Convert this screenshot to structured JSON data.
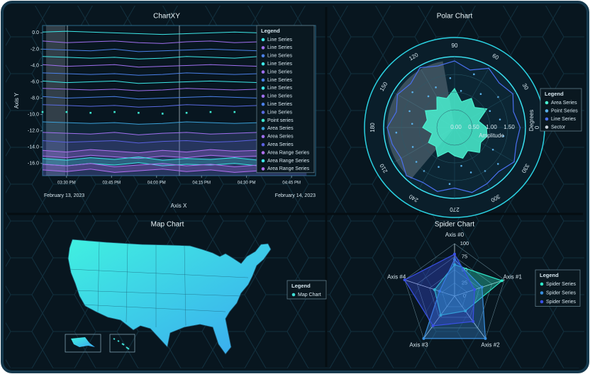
{
  "chart_data": [
    {
      "type": "line",
      "title": "ChartXY",
      "x_label": "Axis X",
      "y_label": "Axis Y",
      "legend_title": "Legend",
      "date_labels": [
        "February 13, 2023",
        "February 14, 2023"
      ],
      "xlim": [
        "2023-02-13T15:22",
        "2023-02-13T16:53"
      ],
      "xticks": [
        {
          "value": "2023-02-13T15:30",
          "label": "03:30 PM"
        },
        {
          "value": "2023-02-13T15:45",
          "label": "03:45 PM"
        },
        {
          "value": "2023-02-13T16:00",
          "label": "04:00 PM"
        },
        {
          "value": "2023-02-13T16:15",
          "label": "04:15 PM"
        },
        {
          "value": "2023-02-13T16:30",
          "label": "04:30 PM"
        },
        {
          "value": "2023-02-13T16:45",
          "label": "04:45 PM"
        }
      ],
      "ylim": [
        -17.5,
        0.9
      ],
      "yticks": [
        {
          "value": 0,
          "label": "0.0"
        },
        {
          "value": -2,
          "label": "-2.0"
        },
        {
          "value": -4,
          "label": "-4.0"
        },
        {
          "value": -6,
          "label": "-6.0"
        },
        {
          "value": -8,
          "label": "-8.0"
        },
        {
          "value": -10,
          "label": "-10.0"
        },
        {
          "value": -12,
          "label": "-12.0"
        },
        {
          "value": -14,
          "label": "-14.0"
        },
        {
          "value": -16,
          "label": "-16.0"
        }
      ],
      "x": [
        "2023-02-13T15:22",
        "2023-02-13T15:30",
        "2023-02-13T15:38",
        "2023-02-13T15:46",
        "2023-02-13T15:54",
        "2023-02-13T16:02",
        "2023-02-13T16:10",
        "2023-02-13T16:18",
        "2023-02-13T16:26",
        "2023-02-13T16:34",
        "2023-02-13T16:42",
        "2023-02-13T16:50"
      ],
      "series": [
        {
          "name": "Line Series",
          "kind": "line",
          "color": "#3de8e8",
          "values": [
            0.1,
            0.2,
            0.1,
            0.0,
            -0.1,
            -0.2,
            -0.1,
            0.0,
            0.1,
            0.0,
            -0.1,
            0.1
          ]
        },
        {
          "name": "Line Series",
          "kind": "line",
          "color": "#a070f0",
          "values": [
            -1.0,
            -1.2,
            -1.1,
            -1.0,
            -1.2,
            -1.3,
            -1.1,
            -1.0,
            -1.2,
            -1.1,
            -1.0,
            -1.1
          ]
        },
        {
          "name": "Line Series",
          "kind": "line",
          "color": "#4a80e8",
          "values": [
            -2.0,
            -2.1,
            -2.2,
            -2.0,
            -2.3,
            -2.2,
            -2.1,
            -2.0,
            -2.1,
            -2.2,
            -2.0,
            -2.1
          ]
        },
        {
          "name": "Line Series",
          "kind": "line",
          "color": "#3de8e8",
          "values": [
            -2.9,
            -3.0,
            -3.1,
            -3.0,
            -3.2,
            -3.1,
            -2.9,
            -3.0,
            -3.1,
            -2.9,
            -3.0,
            -3.1
          ]
        },
        {
          "name": "Line Series",
          "kind": "line",
          "color": "#a070f0",
          "values": [
            -3.9,
            -4.1,
            -4.0,
            -3.9,
            -4.2,
            -4.1,
            -4.0,
            -3.9,
            -4.0,
            -4.1,
            -3.9,
            -4.0
          ]
        },
        {
          "name": "Line Series",
          "kind": "line",
          "color": "#4a80e8",
          "values": [
            -4.9,
            -5.0,
            -5.1,
            -5.0,
            -5.2,
            -5.1,
            -4.9,
            -5.0,
            -5.1,
            -5.0,
            -4.9,
            -5.0
          ]
        },
        {
          "name": "Line Series",
          "kind": "line",
          "color": "#3de8e8",
          "values": [
            -5.9,
            -6.1,
            -6.0,
            -5.9,
            -6.2,
            -6.1,
            -6.0,
            -5.9,
            -6.0,
            -6.1,
            -5.9,
            -6.0
          ]
        },
        {
          "name": "Line Series",
          "kind": "line",
          "color": "#a070f0",
          "values": [
            -6.8,
            -6.9,
            -7.0,
            -6.9,
            -7.1,
            -7.0,
            -6.8,
            -6.9,
            -7.0,
            -6.9,
            -6.8,
            -6.9
          ]
        },
        {
          "name": "Line Series",
          "kind": "line",
          "color": "#4a80e8",
          "values": [
            -7.8,
            -8.0,
            -7.9,
            -7.8,
            -8.1,
            -8.0,
            -7.9,
            -7.8,
            -7.9,
            -8.0,
            -7.8,
            -7.9
          ]
        },
        {
          "name": "Line Series",
          "kind": "line",
          "color": "#5a6ae0",
          "values": [
            -8.8,
            -8.9,
            -9.0,
            -8.9,
            -9.1,
            -9.0,
            -8.8,
            -8.9,
            -9.0,
            -8.9,
            -8.8,
            -8.9
          ]
        },
        {
          "name": "Point series",
          "kind": "point",
          "color": "#3de8d0",
          "values": [
            -9.7,
            -9.7,
            -9.8,
            -9.7,
            -9.8,
            -9.9,
            -9.8,
            -9.7,
            -9.7,
            -9.8,
            -9.7,
            -9.8
          ]
        },
        {
          "name": "Area Series",
          "kind": "area",
          "color": "#3aa0d8",
          "values": [
            -10.9,
            -11.0,
            -11.1,
            -11.0,
            -11.2,
            -11.1,
            -10.9,
            -11.0,
            -11.1,
            -11.0,
            -10.9,
            -11.0
          ]
        },
        {
          "name": "Area Series",
          "kind": "area",
          "color": "#a070f0",
          "values": [
            -12.2,
            -12.3,
            -12.4,
            -12.2,
            -12.5,
            -12.3,
            -12.2,
            -12.4,
            -12.3,
            -12.2,
            -12.4,
            -12.3
          ]
        },
        {
          "name": "Area Series",
          "kind": "area",
          "color": "#5a60e0",
          "values": [
            -13.2,
            -13.4,
            -13.3,
            -13.2,
            -13.5,
            -13.3,
            -13.2,
            -13.4,
            -13.3,
            -13.1,
            -13.3,
            -13.2
          ]
        },
        {
          "name": "Area Range Series",
          "kind": "range",
          "color": "#b070f0",
          "high": [
            -14.4,
            -14.6,
            -14.3,
            -14.5,
            -14.7,
            -14.4,
            -14.6,
            -14.3,
            -14.5,
            -14.4,
            -14.6,
            -14.5
          ],
          "low": [
            -15.1,
            -15.3,
            -15.0,
            -15.2,
            -15.4,
            -15.1,
            -15.3,
            -15.0,
            -15.2,
            -15.1,
            -15.3,
            -15.2
          ]
        },
        {
          "name": "Area Range Series",
          "kind": "range",
          "color": "#3de8e8",
          "high": [
            -15.4,
            -15.6,
            -15.3,
            -15.5,
            -15.2,
            -15.6,
            -15.4,
            -15.5,
            -15.3,
            -15.6,
            -15.4,
            -15.5
          ],
          "low": [
            -16.1,
            -16.3,
            -16.0,
            -16.2,
            -15.9,
            -16.3,
            -16.1,
            -16.2,
            -16.0,
            -16.3,
            -16.1,
            -16.2
          ]
        },
        {
          "name": "Area Range Series",
          "kind": "range",
          "color": "#b070f0",
          "high": [
            -16.1,
            -16.3,
            -16.0,
            -16.4,
            -16.2,
            -16.0,
            -16.3,
            -16.1,
            -16.4,
            -16.2,
            -16.0,
            -16.3
          ],
          "low": [
            -16.8,
            -17.0,
            -16.7,
            -17.1,
            -16.9,
            -16.7,
            -17.0,
            -16.8,
            -17.1,
            -16.9,
            -16.7,
            -17.0
          ]
        }
      ]
    },
    {
      "type": "polar",
      "title": "Polar Chart",
      "r_label": "Amplitude",
      "angle_label": "Degrees",
      "legend_title": "Legend",
      "ylim": [
        0,
        2
      ],
      "yticks": [
        {
          "value": 0,
          "label": "0.00"
        },
        {
          "value": 0.5,
          "label": "0.50"
        },
        {
          "value": 1,
          "label": "1.00"
        },
        {
          "value": 1.5,
          "label": "1.50"
        }
      ],
      "angle_ticks": [
        0,
        30,
        60,
        90,
        120,
        150,
        180,
        210,
        240,
        270,
        300,
        330
      ],
      "angles": [
        0,
        15,
        30,
        45,
        60,
        75,
        90,
        105,
        120,
        135,
        150,
        165,
        180,
        195,
        210,
        225,
        240,
        255,
        270,
        285,
        300,
        315,
        330,
        345
      ],
      "series": [
        {
          "name": "Area Series",
          "kind": "area",
          "color": "#4af0d0",
          "values": [
            0.9,
            0.7,
            1.05,
            0.8,
            0.95,
            0.75,
            1.1,
            0.85,
            1.0,
            0.7,
            0.95,
            0.8,
            0.9,
            0.65,
            0.85,
            0.75,
            0.95,
            0.7,
            0.8,
            0.9,
            0.75,
            1.0,
            0.85,
            0.95
          ]
        },
        {
          "name": "Point Series",
          "kind": "point",
          "color": "#5ab0e8",
          "angles": [
            10,
            35,
            52,
            70,
            95,
            115,
            140,
            160,
            185,
            205,
            222,
            248,
            265,
            290,
            305,
            330,
            350,
            25,
            80,
            130,
            175,
            235,
            280,
            320
          ],
          "values": [
            1.3,
            1.5,
            1.2,
            1.6,
            1.4,
            1.25,
            1.55,
            1.35,
            1.65,
            1.3,
            1.45,
            1.2,
            1.6,
            1.35,
            1.5,
            1.25,
            1.4,
            1.1,
            1.05,
            1.15,
            1.2,
            1.5,
            1.1,
            1.6
          ]
        },
        {
          "name": "Line Series",
          "kind": "line",
          "color": "#4a70f0",
          "values": [
            1.85,
            1.72,
            1.9,
            1.78,
            1.93,
            1.68,
            1.88,
            1.8,
            1.95,
            1.75,
            1.86,
            1.7,
            1.9,
            1.82,
            1.74,
            1.92,
            1.79,
            1.87,
            1.71,
            1.9,
            1.83,
            1.76,
            1.94,
            1.8
          ]
        },
        {
          "name": "Sector",
          "kind": "sector",
          "color": "#c8d0d8",
          "start": 100,
          "end": 230,
          "value": 1.9
        }
      ]
    },
    {
      "type": "map",
      "title": "Map Chart",
      "legend_title": "Legend",
      "series": [
        {
          "name": "Map Chart",
          "color": "#40e0d8"
        }
      ]
    },
    {
      "type": "radar",
      "title": "Spider Chart",
      "legend_title": "Legend",
      "categories": [
        "Axis #0",
        "Axis #1",
        "Axis #2",
        "Axis #3",
        "Axis #4"
      ],
      "ylim": [
        0,
        100
      ],
      "yticks": [
        0,
        25,
        50,
        75,
        100
      ],
      "series": [
        {
          "name": "Spider Series",
          "color": "#2ee8c8",
          "values": [
            60,
            95,
            35,
            45,
            40
          ]
        },
        {
          "name": "Spider Series",
          "color": "#3a90e0",
          "values": [
            70,
            55,
            100,
            100,
            30
          ]
        },
        {
          "name": "Spider Series",
          "color": "#3a50e8",
          "values": [
            80,
            40,
            60,
            70,
            100
          ]
        }
      ]
    }
  ]
}
